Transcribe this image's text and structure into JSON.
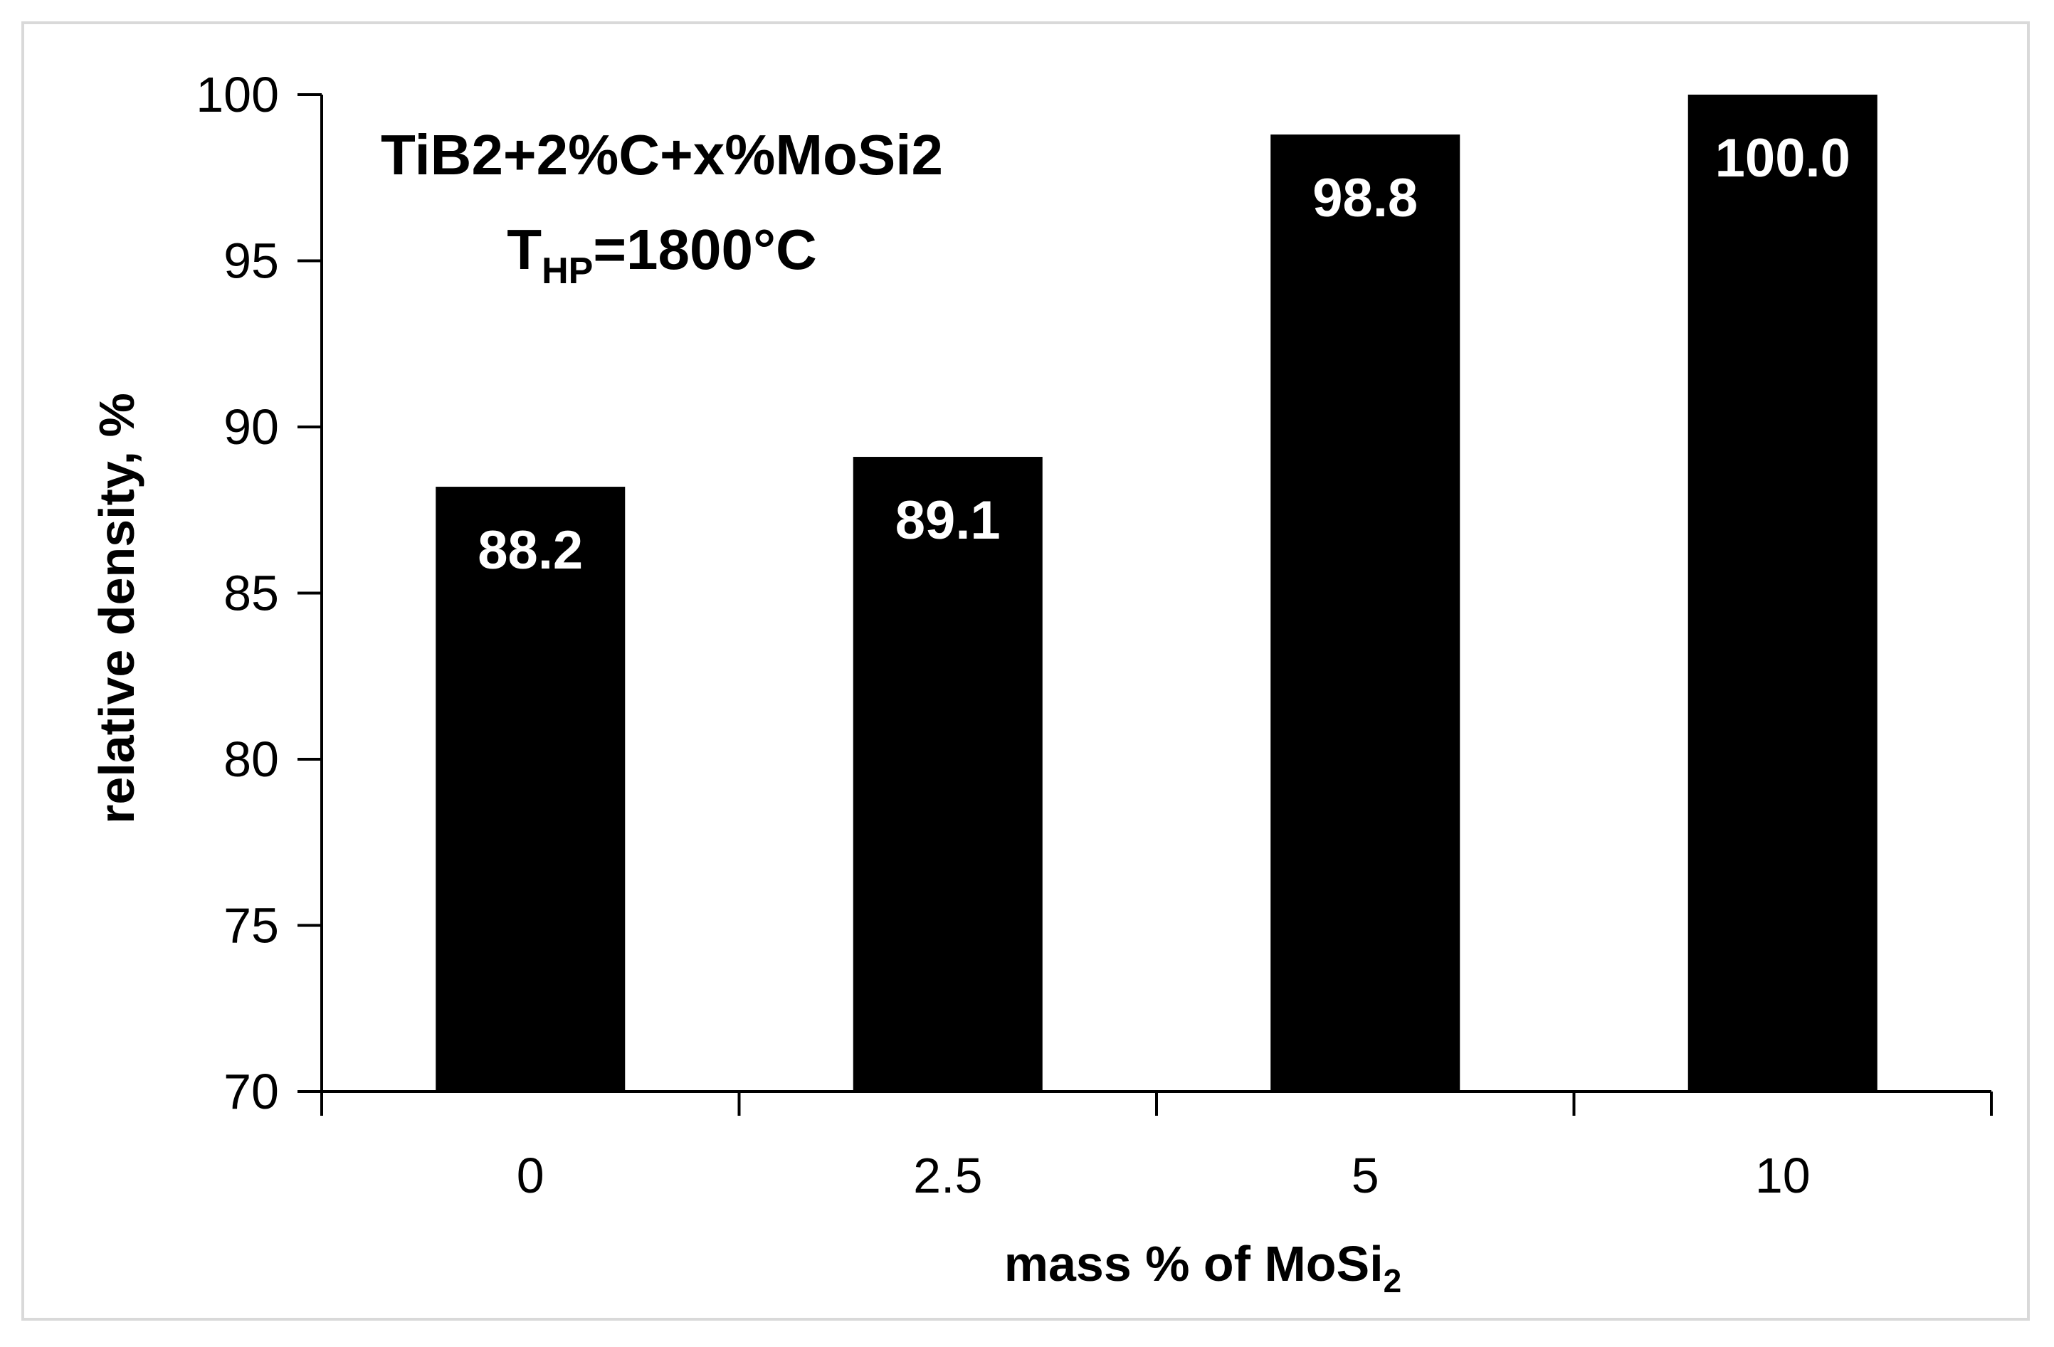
{
  "chart_data": {
    "type": "bar",
    "annotation": {
      "line1": "TiB2+2%C+x%MoSi2",
      "line2_main": "T",
      "line2_sub": "HP",
      "line2_rest": "=1800°C"
    },
    "xlabel": {
      "main": "mass % of MoSi",
      "sub": "2"
    },
    "ylabel": "relative density, %",
    "categories": [
      "0",
      "2.5",
      "5",
      "10"
    ],
    "values": [
      88.2,
      89.1,
      98.8,
      100.0
    ],
    "data_labels": [
      "88.2",
      "89.1",
      "98.8",
      "100.0"
    ],
    "yticks": [
      70,
      75,
      80,
      85,
      90,
      95,
      100
    ],
    "ylim": [
      70,
      100
    ],
    "grid": false,
    "bar_color": "#000000",
    "label_color": "#ffffff"
  }
}
